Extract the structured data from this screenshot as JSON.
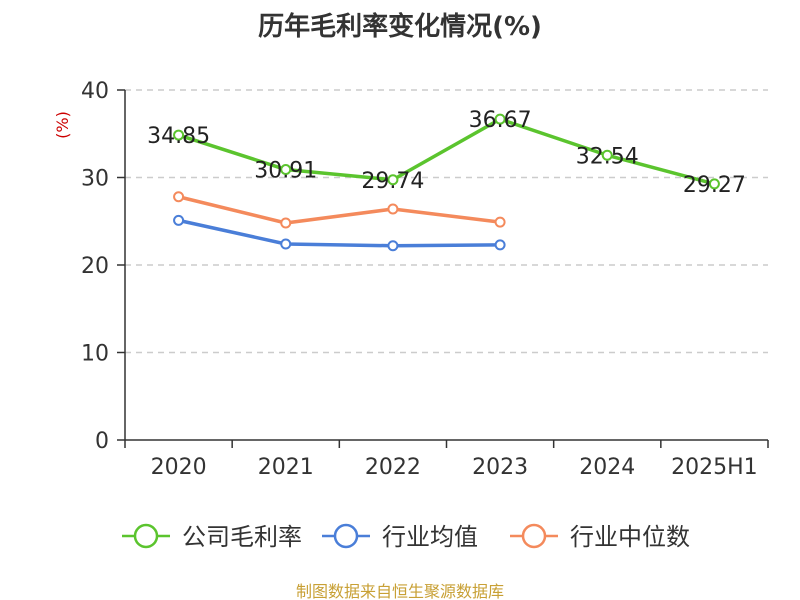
{
  "title": "历年毛利率变化情况(%)",
  "source": "制图数据来自恒生聚源数据库",
  "chart_data": {
    "type": "line",
    "title": "历年毛利率变化情况(%)",
    "ylabel": "(%)",
    "ylim": [
      0,
      40
    ],
    "yticks": [
      0,
      10,
      20,
      30,
      40
    ],
    "categories": [
      "2020",
      "2021",
      "2022",
      "2023",
      "2024",
      "2025H1"
    ],
    "grid": true,
    "legend_position": "bottom",
    "series": [
      {
        "name": "公司毛利率",
        "color": "#5bc42e",
        "values": [
          34.85,
          30.91,
          29.74,
          36.67,
          32.54,
          29.27
        ],
        "labels": [
          "34.85",
          "30.91",
          "29.74",
          "36.67",
          "32.54",
          "29.27"
        ]
      },
      {
        "name": "行业均值",
        "color": "#4a7ed8",
        "values": [
          25.1,
          22.4,
          22.2,
          22.3,
          null,
          null
        ]
      },
      {
        "name": "行业中位数",
        "color": "#f48a5c",
        "values": [
          27.8,
          24.8,
          26.4,
          24.9,
          null,
          null
        ]
      }
    ]
  }
}
